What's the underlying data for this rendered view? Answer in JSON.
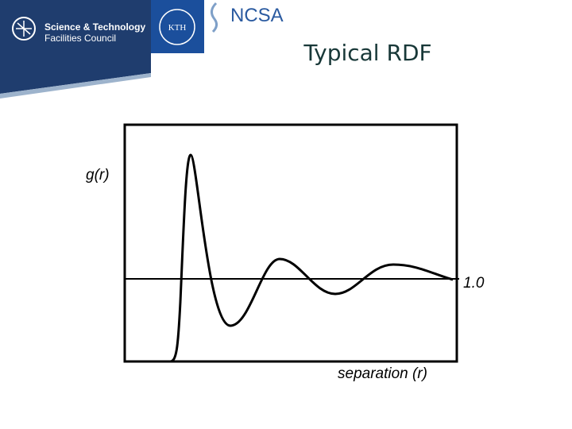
{
  "header": {
    "org_line1": "Science & Technology",
    "org_line2": "Facilities Council",
    "kth": "KTH",
    "ncsa": "NCSA"
  },
  "slide": {
    "title": "Typical RDF",
    "y_label": "g(r)",
    "reference_label": "1.0",
    "x_label": "separation (r)"
  }
}
